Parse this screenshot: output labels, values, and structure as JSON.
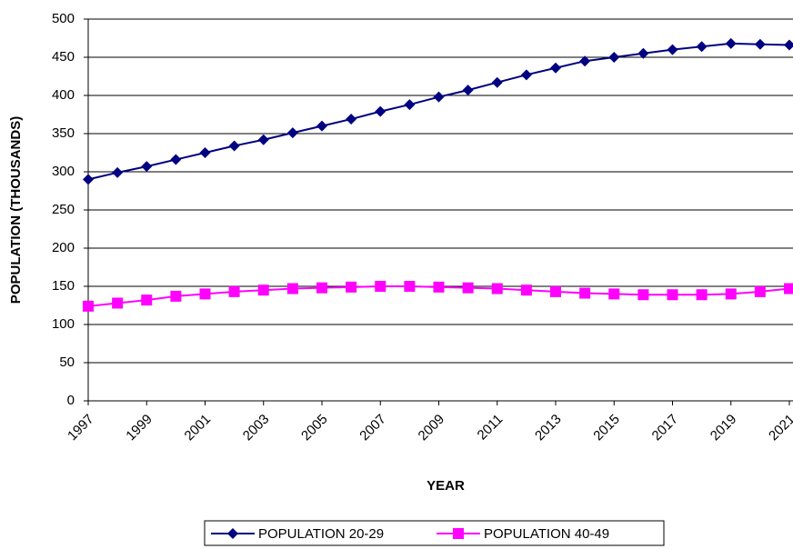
{
  "chart_data": {
    "type": "line",
    "x_label": "YEAR",
    "y_label": "POPULATION (THOUSANDS)",
    "x": [
      1997,
      1998,
      1999,
      2000,
      2001,
      2002,
      2003,
      2004,
      2005,
      2006,
      2007,
      2008,
      2009,
      2010,
      2011,
      2012,
      2013,
      2014,
      2015,
      2016,
      2017,
      2018,
      2019,
      2020,
      2021
    ],
    "xlim": [
      1997,
      2021
    ],
    "xticks": [
      1997,
      1999,
      2001,
      2003,
      2005,
      2007,
      2009,
      2011,
      2013,
      2015,
      2017,
      2019,
      2021
    ],
    "ylim": [
      0,
      500
    ],
    "yticks": [
      0,
      50,
      100,
      150,
      200,
      250,
      300,
      350,
      400,
      450,
      500
    ],
    "grid": true,
    "legend": "bottom",
    "series": [
      {
        "name": "POPULATION 20-29",
        "color": "#000080",
        "marker": "diamond",
        "values": [
          290,
          299,
          307,
          316,
          325,
          334,
          342,
          351,
          360,
          369,
          379,
          388,
          398,
          407,
          417,
          427,
          436,
          445,
          450,
          455,
          460,
          464,
          468,
          467,
          466
        ]
      },
      {
        "name": "POPULATION 40-49",
        "color": "#ff00ff",
        "marker": "square",
        "values": [
          124,
          128,
          132,
          137,
          140,
          143,
          145,
          147,
          148,
          149,
          150,
          150,
          149,
          148,
          147,
          145,
          143,
          141,
          140,
          139,
          139,
          139,
          140,
          143,
          147
        ]
      }
    ]
  }
}
